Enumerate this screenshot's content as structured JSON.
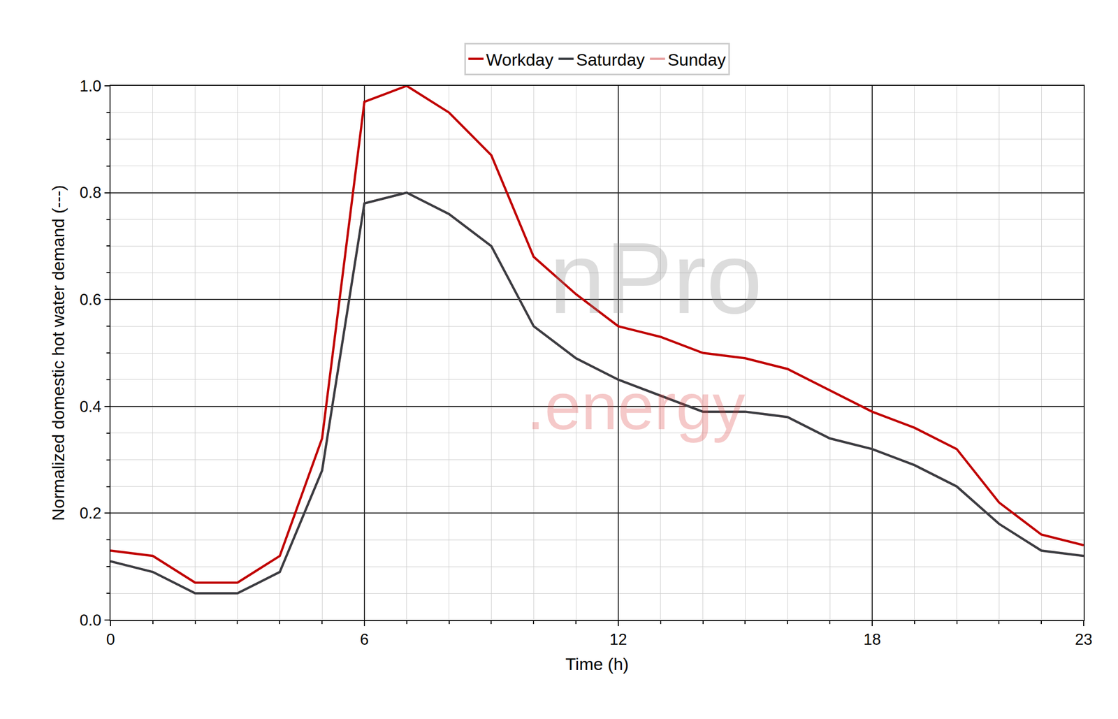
{
  "chart_data": {
    "type": "line",
    "x_label": "Time (h)",
    "y_label": "Normalized domestic hot water demand (---)",
    "x": [
      0,
      1,
      2,
      3,
      4,
      5,
      6,
      7,
      8,
      9,
      10,
      11,
      12,
      13,
      14,
      15,
      16,
      17,
      18,
      19,
      20,
      21,
      22,
      23
    ],
    "series": [
      {
        "name": "Workday",
        "color": "#c00000",
        "values": [
          0.13,
          0.12,
          0.07,
          0.07,
          0.12,
          0.34,
          0.97,
          1.0,
          0.95,
          0.87,
          0.68,
          0.61,
          0.55,
          0.53,
          0.5,
          0.49,
          0.47,
          0.43,
          0.39,
          0.36,
          0.32,
          0.22,
          0.16,
          0.14
        ]
      },
      {
        "name": "Saturday",
        "color": "#3a3d42",
        "values": [
          0.11,
          0.09,
          0.05,
          0.05,
          0.09,
          0.28,
          0.78,
          0.8,
          0.76,
          0.7,
          0.55,
          0.49,
          0.45,
          0.42,
          0.39,
          0.39,
          0.38,
          0.34,
          0.32,
          0.29,
          0.25,
          0.18,
          0.13,
          0.12
        ]
      },
      {
        "name": "Sunday",
        "color": "#e8a0a0",
        "values": [
          0.11,
          0.09,
          0.05,
          0.05,
          0.09,
          0.28,
          0.78,
          0.8,
          0.76,
          0.7,
          0.55,
          0.49,
          0.45,
          0.42,
          0.39,
          0.39,
          0.38,
          0.34,
          0.32,
          0.29,
          0.25,
          0.18,
          0.13,
          0.12
        ]
      }
    ],
    "xlim": [
      0,
      23
    ],
    "xticks": [
      0,
      6,
      12,
      18,
      23
    ],
    "ylim": [
      0,
      1
    ],
    "yticks": [
      {
        "value": 0,
        "label": "0.0"
      },
      0.2,
      0.4,
      0.6,
      0.8,
      {
        "value": 1,
        "label": "1.0"
      }
    ],
    "grid": true,
    "legend": "top",
    "annotations": [
      {
        "text": "nPro"
      },
      {
        "text": ".energy"
      }
    ]
  }
}
